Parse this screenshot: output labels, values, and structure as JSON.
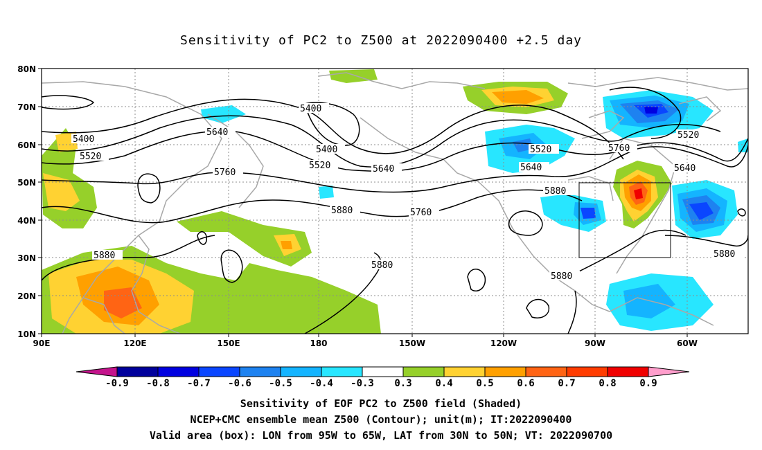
{
  "title": "Sensitivity of PC2 to Z500 at 2022090400 +2.5 day",
  "lat_labels": [
    "80N",
    "70N",
    "60N",
    "50N",
    "40N",
    "30N",
    "20N",
    "10N"
  ],
  "lon_labels": [
    "90E",
    "120E",
    "150E",
    "180",
    "150W",
    "120W",
    "90W",
    "60W"
  ],
  "contours": {
    "c5400a": "5400",
    "c5400b": "5400",
    "c5400c": "5400",
    "c5520a": "5520",
    "c5520b": "5520",
    "c5520c": "5520",
    "c5520d": "5520",
    "c5640a": "5640",
    "c5640b": "5640",
    "c5640c": "5640",
    "c5640d": "5640",
    "c5760a": "5760",
    "c5760b": "5760",
    "c5760c": "5760",
    "c5880a": "5880",
    "c5880b": "5880",
    "c5880c": "5880",
    "c5880d": "5880",
    "c5880e": "5880",
    "c5880f": "5880"
  },
  "colorbar": {
    "colors": [
      "#c4148c",
      "#00009c",
      "#0000e0",
      "#0a46ff",
      "#1e82f0",
      "#14b4ff",
      "#28e6ff",
      "#ffffff",
      "#96d02a",
      "#ffd232",
      "#ffa000",
      "#ff6414",
      "#ff3c00",
      "#f00000",
      "#ff9ecc"
    ],
    "labels": [
      "-0.9",
      "-0.8",
      "-0.7",
      "-0.6",
      "-0.5",
      "-0.4",
      "-0.3",
      "0.3",
      "0.4",
      "0.5",
      "0.6",
      "0.7",
      "0.8",
      "0.9"
    ]
  },
  "captions": {
    "line1": "Sensitivity of EOF PC2 to Z500 field (Shaded)",
    "line2": "NCEP+CMC ensemble mean Z500 (Contour); unit(m); IT:2022090400",
    "line3": "Valid area (box): LON from 95W to 65W, LAT from 30N to 50N; VT: 2022090700"
  }
}
